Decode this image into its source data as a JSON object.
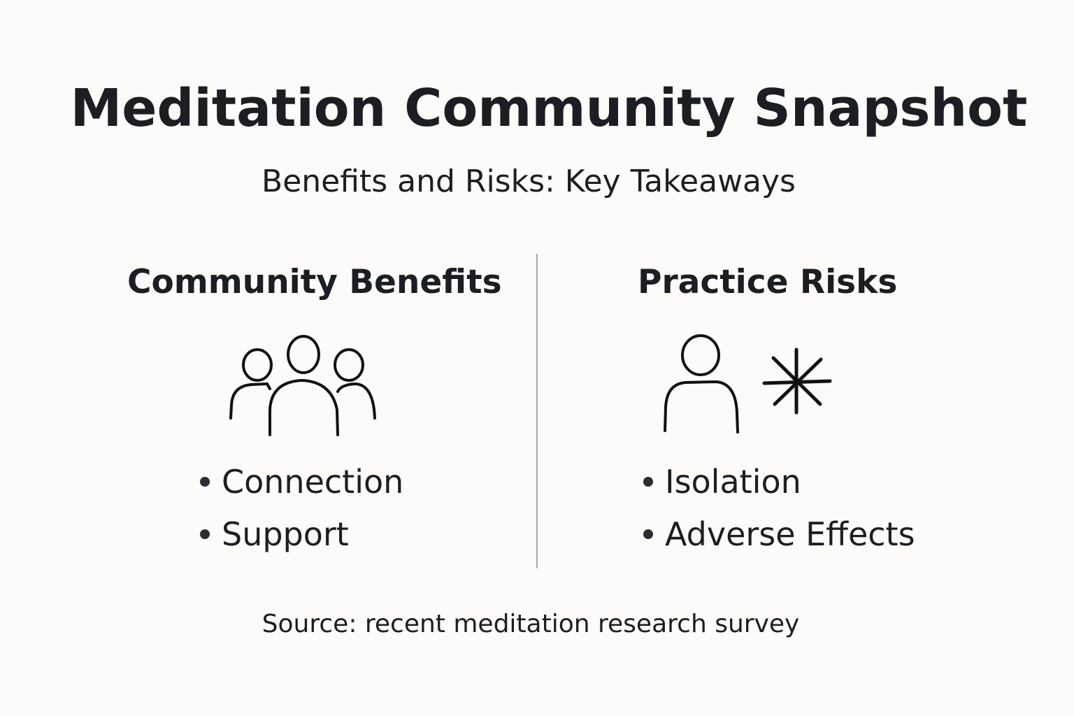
{
  "title": "Meditation Community Snapshot",
  "subtitle": "Benefits and Risks: Key Takeaways",
  "columns": [
    {
      "heading": "Community Benefits",
      "icon": "group-of-people-icon",
      "bullets": [
        "Connection",
        "Support"
      ]
    },
    {
      "heading": "Practice Risks",
      "icon": "person-with-burst-icon",
      "bullets": [
        "Isolation",
        "Adverse Effects"
      ]
    }
  ],
  "source": "Source: recent meditation research survey",
  "colors": {
    "background": "#fcfbf9",
    "text": "#1b1e22",
    "divider": "#a8a8a8"
  }
}
